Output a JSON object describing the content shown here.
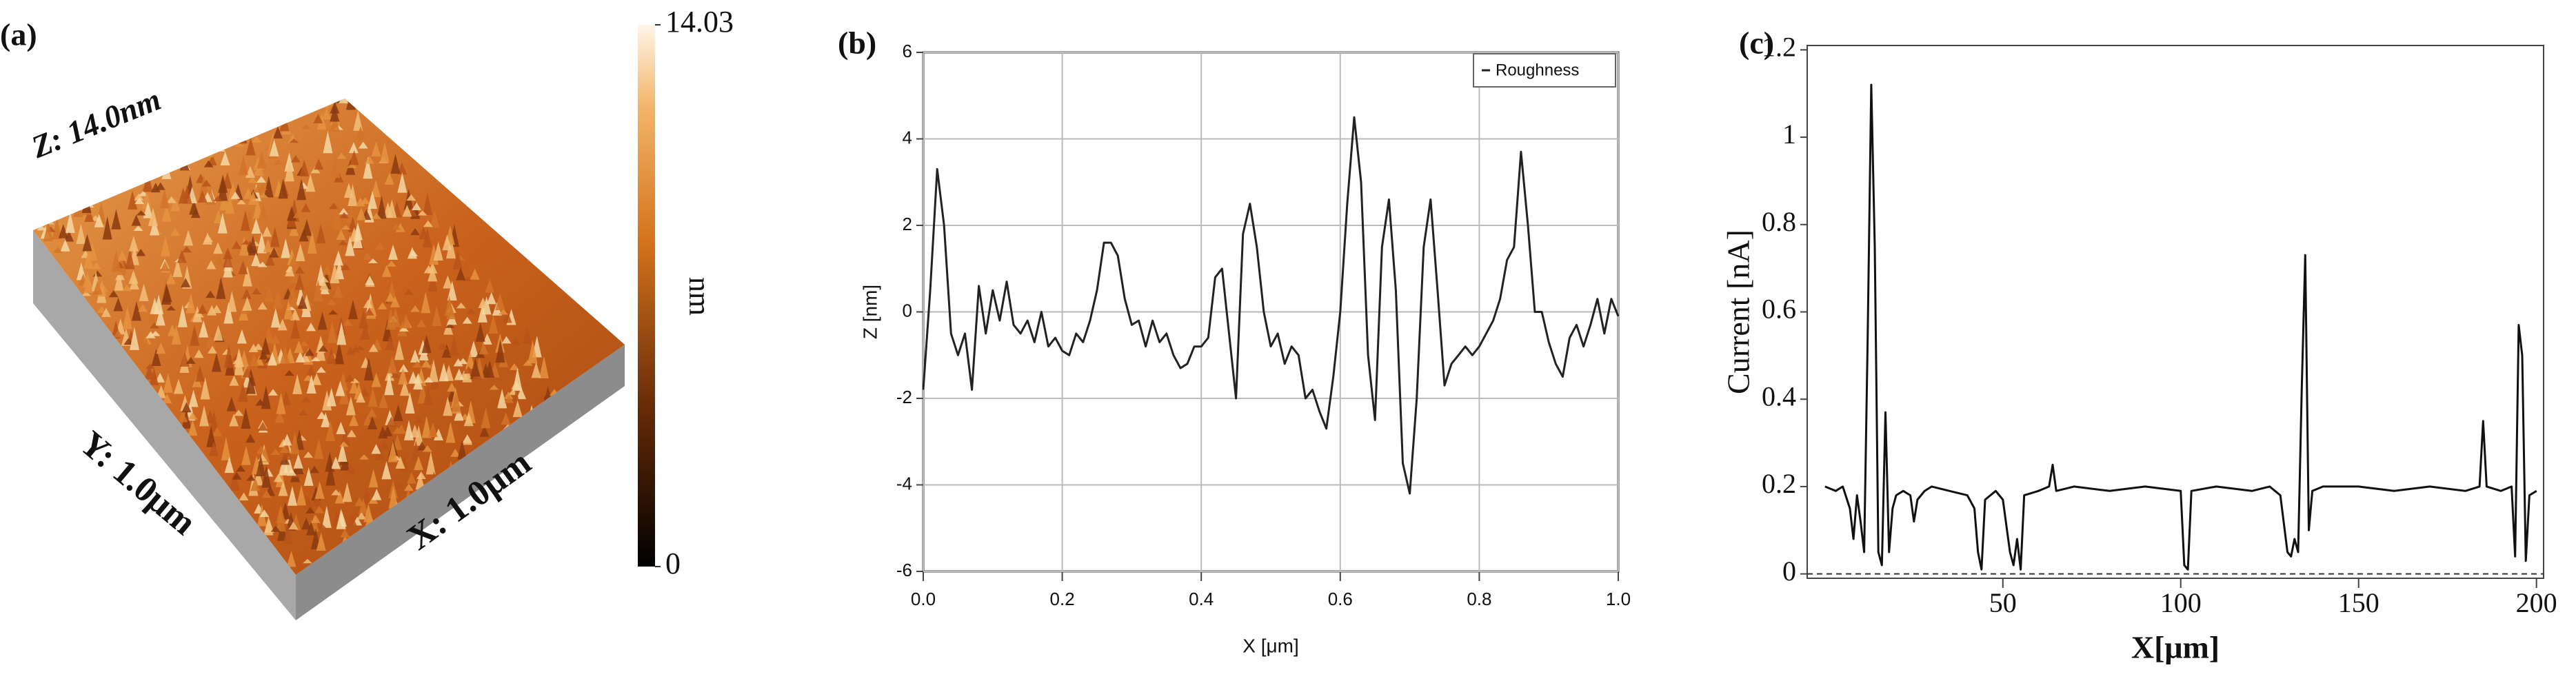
{
  "chart_data": [
    {
      "type": "surface3d",
      "panel_label": "(a)",
      "annotations": [
        "Z: 14.0nm",
        "Y: 1.0μm",
        "X: 1.0μm"
      ],
      "clim": [
        0,
        14.03
      ],
      "cticks": [
        0,
        14.03
      ],
      "colorbar_label": "nm"
    },
    {
      "type": "line",
      "panel_label": "(b)",
      "xlabel": "X [μm]",
      "ylabel": "Z [nm]",
      "x": [
        0,
        0.01,
        0.02,
        0.03,
        0.04,
        0.05,
        0.06,
        0.07,
        0.08,
        0.09,
        0.1,
        0.11,
        0.12,
        0.13,
        0.14,
        0.15,
        0.16,
        0.17,
        0.18,
        0.19,
        0.2,
        0.21,
        0.22,
        0.23,
        0.24,
        0.25,
        0.26,
        0.27,
        0.28,
        0.29,
        0.3,
        0.31,
        0.32,
        0.33,
        0.34,
        0.35,
        0.36,
        0.37,
        0.38,
        0.39,
        0.4,
        0.41,
        0.42,
        0.43,
        0.44,
        0.45,
        0.46,
        0.47,
        0.48,
        0.49,
        0.5,
        0.51,
        0.52,
        0.53,
        0.54,
        0.55,
        0.56,
        0.57,
        0.58,
        0.59,
        0.6,
        0.61,
        0.62,
        0.63,
        0.64,
        0.65,
        0.66,
        0.67,
        0.68,
        0.69,
        0.7,
        0.71,
        0.72,
        0.73,
        0.74,
        0.75,
        0.76,
        0.77,
        0.78,
        0.79,
        0.8,
        0.81,
        0.82,
        0.83,
        0.84,
        0.85,
        0.86,
        0.87,
        0.88,
        0.89,
        0.9,
        0.91,
        0.92,
        0.93,
        0.94,
        0.95,
        0.96,
        0.97,
        0.98,
        0.99,
        1
      ],
      "series": [
        {
          "name": "Roughness",
          "color": "#222222",
          "values": [
            -1.8,
            0.5,
            3.3,
            2.0,
            -0.5,
            -1.0,
            -0.5,
            -1.8,
            0.6,
            -0.5,
            0.5,
            -0.2,
            0.7,
            -0.3,
            -0.5,
            -0.2,
            -0.7,
            0.0,
            -0.8,
            -0.6,
            -0.9,
            -1.0,
            -0.5,
            -0.7,
            -0.2,
            0.5,
            1.6,
            1.6,
            1.3,
            0.3,
            -0.3,
            -0.2,
            -0.8,
            -0.2,
            -0.7,
            -0.5,
            -1.0,
            -1.3,
            -1.2,
            -0.8,
            -0.8,
            -0.6,
            0.8,
            1.0,
            -0.5,
            -2.0,
            1.8,
            2.5,
            1.5,
            0.0,
            -0.8,
            -0.5,
            -1.2,
            -0.8,
            -1.0,
            -2.0,
            -1.8,
            -2.3,
            -2.7,
            -1.5,
            0.0,
            2.5,
            4.5,
            3.0,
            -1.0,
            -2.5,
            1.5,
            2.6,
            0.5,
            -3.5,
            -4.2,
            -2.0,
            1.5,
            2.6,
            0.5,
            -1.7,
            -1.2,
            -1.0,
            -0.8,
            -1.0,
            -0.8,
            -0.5,
            -0.2,
            0.3,
            1.2,
            1.5,
            3.7,
            2.0,
            0.0,
            0.0,
            -0.7,
            -1.2,
            -1.5,
            -0.6,
            -0.3,
            -0.8,
            -0.3,
            0.3,
            -0.5,
            0.3,
            -0.1
          ]
        }
      ],
      "xlim": [
        0,
        1
      ],
      "ylim": [
        -6,
        6
      ],
      "xticks": [
        {
          "value": 0,
          "label": "0.0"
        },
        0.2,
        0.4,
        0.6,
        0.8,
        {
          "value": 1,
          "label": "1.0"
        }
      ],
      "yticks": [
        -6,
        -4,
        -2,
        0,
        2,
        4,
        6
      ],
      "grid": true,
      "legend": "upper right"
    },
    {
      "type": "line",
      "panel_label": "(c)",
      "xlabel": "X[μm]",
      "ylabel": "Current [nA]",
      "x": [
        0,
        3,
        5,
        7,
        8,
        9,
        10,
        11,
        12,
        13,
        14,
        15,
        16,
        17,
        18,
        19,
        20,
        22,
        24,
        25,
        26,
        28,
        30,
        35,
        40,
        42,
        43,
        44,
        45,
        48,
        50,
        52,
        53,
        54,
        55,
        56,
        60,
        63,
        64,
        65,
        70,
        80,
        90,
        100,
        101,
        102,
        103,
        110,
        120,
        125,
        128,
        130,
        131,
        132,
        133,
        134,
        135,
        136,
        137,
        140,
        150,
        160,
        170,
        180,
        184,
        185,
        186,
        190,
        193,
        194,
        195,
        196,
        197,
        198,
        200
      ],
      "values": [
        0.2,
        0.19,
        0.2,
        0.15,
        0.08,
        0.18,
        0.12,
        0.05,
        0.54,
        1.12,
        0.75,
        0.05,
        0.02,
        0.37,
        0.05,
        0.15,
        0.18,
        0.19,
        0.18,
        0.12,
        0.17,
        0.19,
        0.2,
        0.19,
        0.18,
        0.15,
        0.05,
        0.01,
        0.17,
        0.19,
        0.17,
        0.05,
        0.02,
        0.08,
        0.01,
        0.18,
        0.19,
        0.2,
        0.25,
        0.19,
        0.2,
        0.19,
        0.2,
        0.19,
        0.02,
        0.01,
        0.19,
        0.2,
        0.19,
        0.2,
        0.18,
        0.05,
        0.04,
        0.08,
        0.05,
        0.42,
        0.73,
        0.1,
        0.19,
        0.2,
        0.2,
        0.19,
        0.2,
        0.19,
        0.2,
        0.35,
        0.2,
        0.19,
        0.2,
        0.04,
        0.57,
        0.5,
        0.03,
        0.18,
        0.19
      ],
      "color": "#111111",
      "xlim": [
        -5,
        202
      ],
      "ylim": [
        -0.01,
        1.21
      ],
      "xticks": [
        50,
        100,
        150,
        200
      ],
      "yticks": [
        0,
        0.2,
        0.4,
        0.6,
        0.8,
        1,
        1.2
      ],
      "hlines": [
        0
      ],
      "grid": false
    }
  ]
}
